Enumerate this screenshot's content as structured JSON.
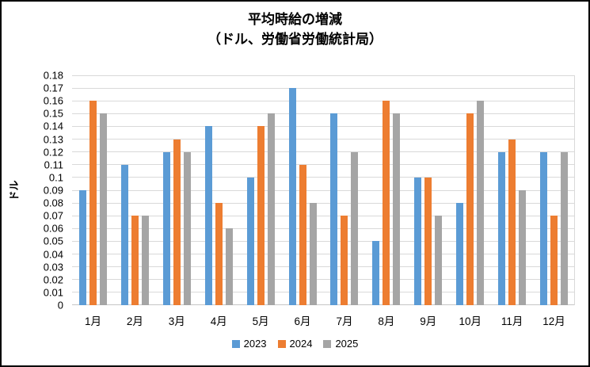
{
  "chart_data": {
    "type": "bar",
    "title_lines": [
      "平均時給の増減",
      "（ドル、労働省労働統計局）"
    ],
    "ylabel": "ドル",
    "xlabel": "",
    "categories": [
      "1月",
      "2月",
      "3月",
      "4月",
      "5月",
      "6月",
      "7月",
      "8月",
      "9月",
      "10月",
      "11月",
      "12月"
    ],
    "series": [
      {
        "name": "2023",
        "color": "#5B9BD5",
        "values": [
          0.09,
          0.11,
          0.12,
          0.14,
          0.1,
          0.17,
          0.15,
          0.05,
          0.1,
          0.08,
          0.12,
          0.12
        ]
      },
      {
        "name": "2024",
        "color": "#ED7D31",
        "values": [
          0.16,
          0.07,
          0.13,
          0.08,
          0.14,
          0.11,
          0.07,
          0.16,
          0.1,
          0.15,
          0.13,
          0.07
        ]
      },
      {
        "name": "2025",
        "color": "#A5A5A5",
        "values": [
          0.15,
          0.07,
          0.12,
          0.06,
          0.15,
          0.08,
          0.12,
          0.15,
          0.07,
          0.16,
          0.09,
          0.12
        ]
      }
    ],
    "ylim": [
      0,
      0.18
    ],
    "y_tick_step": 0.01,
    "y_ticks": [
      "0.18",
      "0.17",
      "0.16",
      "0.15",
      "0.14",
      "0.13",
      "0.12",
      "0.11",
      "0.1",
      "0.09",
      "0.08",
      "0.07",
      "0.06",
      "0.05",
      "0.04",
      "0.03",
      "0.02",
      "0.01",
      "0"
    ],
    "legend_position": "bottom",
    "grid": "horizontal",
    "colors": {
      "gridline": "#D9D9D9",
      "axis_line": "#C6C6C6",
      "text": "#000000",
      "background": "#FFFFFF",
      "frame_border": "#000000"
    }
  }
}
